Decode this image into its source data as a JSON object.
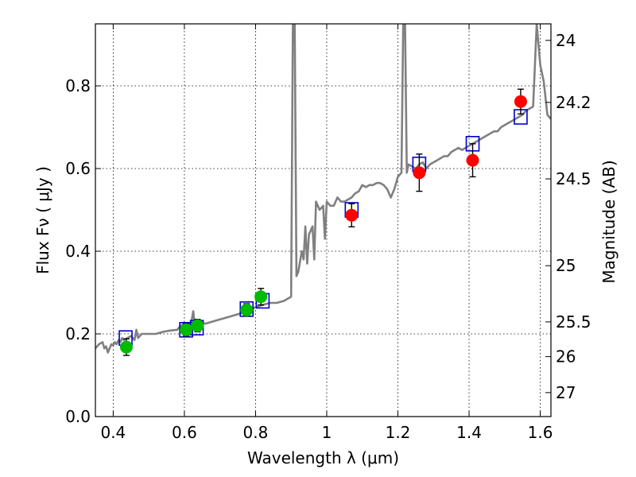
{
  "chart_data": {
    "type": "scatter",
    "title": "",
    "xlabel": "Wavelength  λ (μm)",
    "ylabel": "Flux  Fν  ( μJy )",
    "y2label": "Magnitude (AB)",
    "xlim": [
      0.35,
      1.63
    ],
    "ylim": [
      0.0,
      0.95
    ],
    "grid": true,
    "x_ticks": [
      0.4,
      0.6,
      0.8,
      1.0,
      1.2,
      1.4,
      1.6
    ],
    "x_tick_labels": [
      "0.4",
      "0.6",
      "0.8",
      "1",
      "1.2",
      "1.4",
      "1.6"
    ],
    "y_ticks": [
      0.0,
      0.2,
      0.4,
      0.6,
      0.8
    ],
    "y_tick_labels": [
      "0.0",
      "0.2",
      "0.4",
      "0.6",
      "0.8"
    ],
    "y2_ticks": [
      {
        "label": "24",
        "flux": 0.91
      },
      {
        "label": "24.2",
        "flux": 0.76
      },
      {
        "label": "24.5",
        "flux": 0.575
      },
      {
        "label": "25",
        "flux": 0.365
      },
      {
        "label": "25.5",
        "flux": 0.229
      },
      {
        "label": "26",
        "flux": 0.145
      },
      {
        "label": "27",
        "flux": 0.058
      }
    ],
    "series": [
      {
        "kind": "line",
        "color": "#808080",
        "points": [
          [
            0.35,
            0.165
          ],
          [
            0.36,
            0.175
          ],
          [
            0.37,
            0.18
          ],
          [
            0.375,
            0.165
          ],
          [
            0.38,
            0.17
          ],
          [
            0.385,
            0.155
          ],
          [
            0.39,
            0.165
          ],
          [
            0.395,
            0.175
          ],
          [
            0.4,
            0.172
          ],
          [
            0.405,
            0.18
          ],
          [
            0.41,
            0.175
          ],
          [
            0.415,
            0.185
          ],
          [
            0.42,
            0.18
          ],
          [
            0.425,
            0.19
          ],
          [
            0.43,
            0.185
          ],
          [
            0.44,
            0.19
          ],
          [
            0.45,
            0.195
          ],
          [
            0.46,
            0.185
          ],
          [
            0.465,
            0.21
          ],
          [
            0.47,
            0.19
          ],
          [
            0.48,
            0.2
          ],
          [
            0.5,
            0.2
          ],
          [
            0.52,
            0.2
          ],
          [
            0.54,
            0.205
          ],
          [
            0.56,
            0.208
          ],
          [
            0.58,
            0.21
          ],
          [
            0.59,
            0.22
          ],
          [
            0.6,
            0.225
          ],
          [
            0.61,
            0.215
          ],
          [
            0.62,
            0.23
          ],
          [
            0.625,
            0.255
          ],
          [
            0.63,
            0.215
          ],
          [
            0.64,
            0.225
          ],
          [
            0.66,
            0.225
          ],
          [
            0.68,
            0.23
          ],
          [
            0.7,
            0.235
          ],
          [
            0.72,
            0.24
          ],
          [
            0.74,
            0.245
          ],
          [
            0.76,
            0.25
          ],
          [
            0.78,
            0.255
          ],
          [
            0.8,
            0.265
          ],
          [
            0.82,
            0.27
          ],
          [
            0.84,
            0.275
          ],
          [
            0.86,
            0.275
          ],
          [
            0.88,
            0.28
          ],
          [
            0.9,
            0.29
          ],
          [
            0.905,
            0.95
          ],
          [
            0.91,
            0.95
          ],
          [
            0.915,
            0.34
          ],
          [
            0.92,
            0.35
          ],
          [
            0.93,
            0.4
          ],
          [
            0.935,
            0.38
          ],
          [
            0.94,
            0.46
          ],
          [
            0.945,
            0.37
          ],
          [
            0.95,
            0.44
          ],
          [
            0.96,
            0.46
          ],
          [
            0.965,
            0.38
          ],
          [
            0.97,
            0.52
          ],
          [
            0.98,
            0.5
          ],
          [
            0.99,
            0.51
          ],
          [
            0.995,
            0.43
          ],
          [
            1.0,
            0.52
          ],
          [
            1.01,
            0.51
          ],
          [
            1.02,
            0.51
          ],
          [
            1.03,
            0.53
          ],
          [
            1.04,
            0.52
          ],
          [
            1.05,
            0.52
          ],
          [
            1.06,
            0.525
          ],
          [
            1.07,
            0.53
          ],
          [
            1.08,
            0.54
          ],
          [
            1.09,
            0.545
          ],
          [
            1.1,
            0.56
          ],
          [
            1.11,
            0.555
          ],
          [
            1.12,
            0.56
          ],
          [
            1.13,
            0.56
          ],
          [
            1.14,
            0.565
          ],
          [
            1.15,
            0.565
          ],
          [
            1.16,
            0.56
          ],
          [
            1.17,
            0.55
          ],
          [
            1.18,
            0.53
          ],
          [
            1.19,
            0.55
          ],
          [
            1.2,
            0.58
          ],
          [
            1.21,
            0.59
          ],
          [
            1.215,
            0.95
          ],
          [
            1.22,
            0.95
          ],
          [
            1.225,
            0.59
          ],
          [
            1.23,
            0.61
          ],
          [
            1.24,
            0.605
          ],
          [
            1.25,
            0.6
          ],
          [
            1.26,
            0.61
          ],
          [
            1.27,
            0.615
          ],
          [
            1.28,
            0.6
          ],
          [
            1.29,
            0.61
          ],
          [
            1.3,
            0.615
          ],
          [
            1.31,
            0.62
          ],
          [
            1.32,
            0.625
          ],
          [
            1.33,
            0.63
          ],
          [
            1.34,
            0.63
          ],
          [
            1.35,
            0.64
          ],
          [
            1.36,
            0.645
          ],
          [
            1.37,
            0.65
          ],
          [
            1.38,
            0.645
          ],
          [
            1.39,
            0.65
          ],
          [
            1.4,
            0.655
          ],
          [
            1.41,
            0.66
          ],
          [
            1.42,
            0.665
          ],
          [
            1.43,
            0.67
          ],
          [
            1.44,
            0.675
          ],
          [
            1.45,
            0.68
          ],
          [
            1.46,
            0.685
          ],
          [
            1.47,
            0.69
          ],
          [
            1.48,
            0.69
          ],
          [
            1.49,
            0.7
          ],
          [
            1.5,
            0.705
          ],
          [
            1.51,
            0.71
          ],
          [
            1.52,
            0.715
          ],
          [
            1.53,
            0.72
          ],
          [
            1.54,
            0.725
          ],
          [
            1.55,
            0.73
          ],
          [
            1.56,
            0.74
          ],
          [
            1.57,
            0.745
          ],
          [
            1.58,
            0.75
          ],
          [
            1.59,
            0.95
          ],
          [
            1.6,
            0.85
          ],
          [
            1.61,
            0.81
          ],
          [
            1.62,
            0.73
          ],
          [
            1.63,
            0.72
          ]
        ]
      },
      {
        "kind": "model-boxes",
        "color": "#0000cc",
        "points": [
          [
            0.435,
            0.19
          ],
          [
            0.605,
            0.21
          ],
          [
            0.635,
            0.215
          ],
          [
            0.775,
            0.26
          ],
          [
            0.82,
            0.28
          ],
          [
            1.07,
            0.5
          ],
          [
            1.26,
            0.61
          ],
          [
            1.41,
            0.66
          ],
          [
            1.545,
            0.725
          ]
        ]
      },
      {
        "kind": "points",
        "color": "#00bb00",
        "points": [
          {
            "x": 0.437,
            "y": 0.168,
            "err": 0.02
          },
          {
            "x": 0.605,
            "y": 0.21,
            "err": 0.015
          },
          {
            "x": 0.637,
            "y": 0.22,
            "err": 0.015
          },
          {
            "x": 0.775,
            "y": 0.258,
            "err": 0.015
          },
          {
            "x": 0.815,
            "y": 0.29,
            "err": 0.02
          }
        ]
      },
      {
        "kind": "points",
        "color": "#ff0000",
        "points": [
          {
            "x": 1.07,
            "y": 0.487,
            "err": 0.028
          },
          {
            "x": 1.26,
            "y": 0.59,
            "err": 0.045
          },
          {
            "x": 1.41,
            "y": 0.62,
            "err": 0.04
          },
          {
            "x": 1.545,
            "y": 0.762,
            "err": 0.03
          }
        ]
      }
    ]
  }
}
